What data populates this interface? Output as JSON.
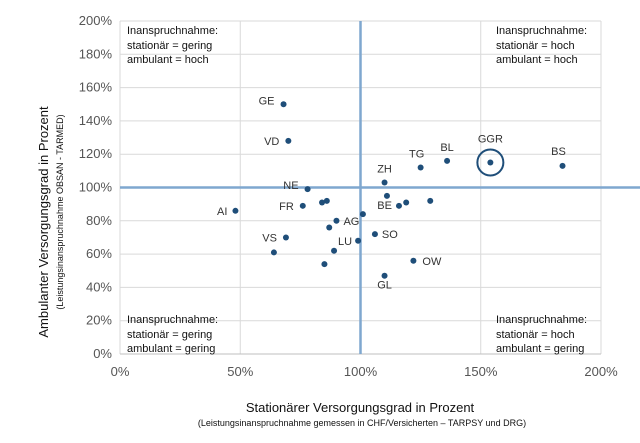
{
  "chart_data": {
    "type": "scatter",
    "xlabel": "Stationärer Versorgungsgrad in Prozent",
    "xlabel_sub": "(Leistungsinanspruchnahme gemessen in CHF/Versicherten – TARPSY und DRG)",
    "ylabel": "Ambulanter Versorgungsgrad in Prozent",
    "ylabel_sub": "(Leistungsinanspruchnahme OBSAN - TARMED)",
    "xlim": [
      0,
      200
    ],
    "ylim": [
      0,
      200
    ],
    "x_ticks": [
      "0%",
      "50%",
      "100%",
      "150%",
      "200%"
    ],
    "y_ticks": [
      "0%",
      "20%",
      "40%",
      "60%",
      "80%",
      "100%",
      "120%",
      "140%",
      "160%",
      "180%",
      "200%"
    ],
    "grid": true,
    "reference_lines": {
      "x": 100,
      "y": 100
    },
    "colors": {
      "points": "#1F4E79",
      "reference": "#7FA7CF",
      "grid": "#D9D9D9",
      "axis": "#BFBFBF"
    },
    "highlight": {
      "label": "GGR",
      "x": 154,
      "y": 115
    },
    "quadrants": [
      {
        "position": "top-left",
        "title": "Inanspruchnahme:",
        "line1": "stationär = gering",
        "line2": "ambulant = hoch"
      },
      {
        "position": "top-right",
        "title": "Inanspruchnahme:",
        "line1": "stationär = hoch",
        "line2": "ambulant = hoch"
      },
      {
        "position": "bottom-left",
        "title": "Inanspruchnahme:",
        "line1": "stationär = gering",
        "line2": "ambulant = gering"
      },
      {
        "position": "bottom-right",
        "title": "Inanspruchnahme:",
        "line1": "stationär = hoch",
        "line2": "ambulant = gering"
      }
    ],
    "points": [
      {
        "label": "AI",
        "x": 48,
        "y": 86
      },
      {
        "label": "GE",
        "x": 68,
        "y": 150
      },
      {
        "label": "VD",
        "x": 70,
        "y": 128
      },
      {
        "label": "VS",
        "x": 69,
        "y": 70
      },
      {
        "label": "",
        "x": 64,
        "y": 61
      },
      {
        "label": "FR",
        "x": 76,
        "y": 89
      },
      {
        "label": "NE",
        "x": 78,
        "y": 99
      },
      {
        "label": "",
        "x": 84,
        "y": 91
      },
      {
        "label": "",
        "x": 86,
        "y": 92
      },
      {
        "label": "AG",
        "x": 90,
        "y": 80
      },
      {
        "label": "",
        "x": 87,
        "y": 76
      },
      {
        "label": "",
        "x": 85,
        "y": 54
      },
      {
        "label": "",
        "x": 89,
        "y": 62
      },
      {
        "label": "LU",
        "x": 99,
        "y": 68
      },
      {
        "label": "",
        "x": 101,
        "y": 84
      },
      {
        "label": "ZH",
        "x": 110,
        "y": 103
      },
      {
        "label": "",
        "x": 111,
        "y": 95
      },
      {
        "label": "BE",
        "x": 116,
        "y": 89
      },
      {
        "label": "",
        "x": 119,
        "y": 91
      },
      {
        "label": "",
        "x": 129,
        "y": 92
      },
      {
        "label": "SO",
        "x": 106,
        "y": 72
      },
      {
        "label": "GL",
        "x": 110,
        "y": 47
      },
      {
        "label": "OW",
        "x": 122,
        "y": 56
      },
      {
        "label": "TG",
        "x": 125,
        "y": 112
      },
      {
        "label": "BL",
        "x": 136,
        "y": 116
      },
      {
        "label": "GGR",
        "x": 154,
        "y": 115
      },
      {
        "label": "BS",
        "x": 184,
        "y": 113
      }
    ]
  }
}
